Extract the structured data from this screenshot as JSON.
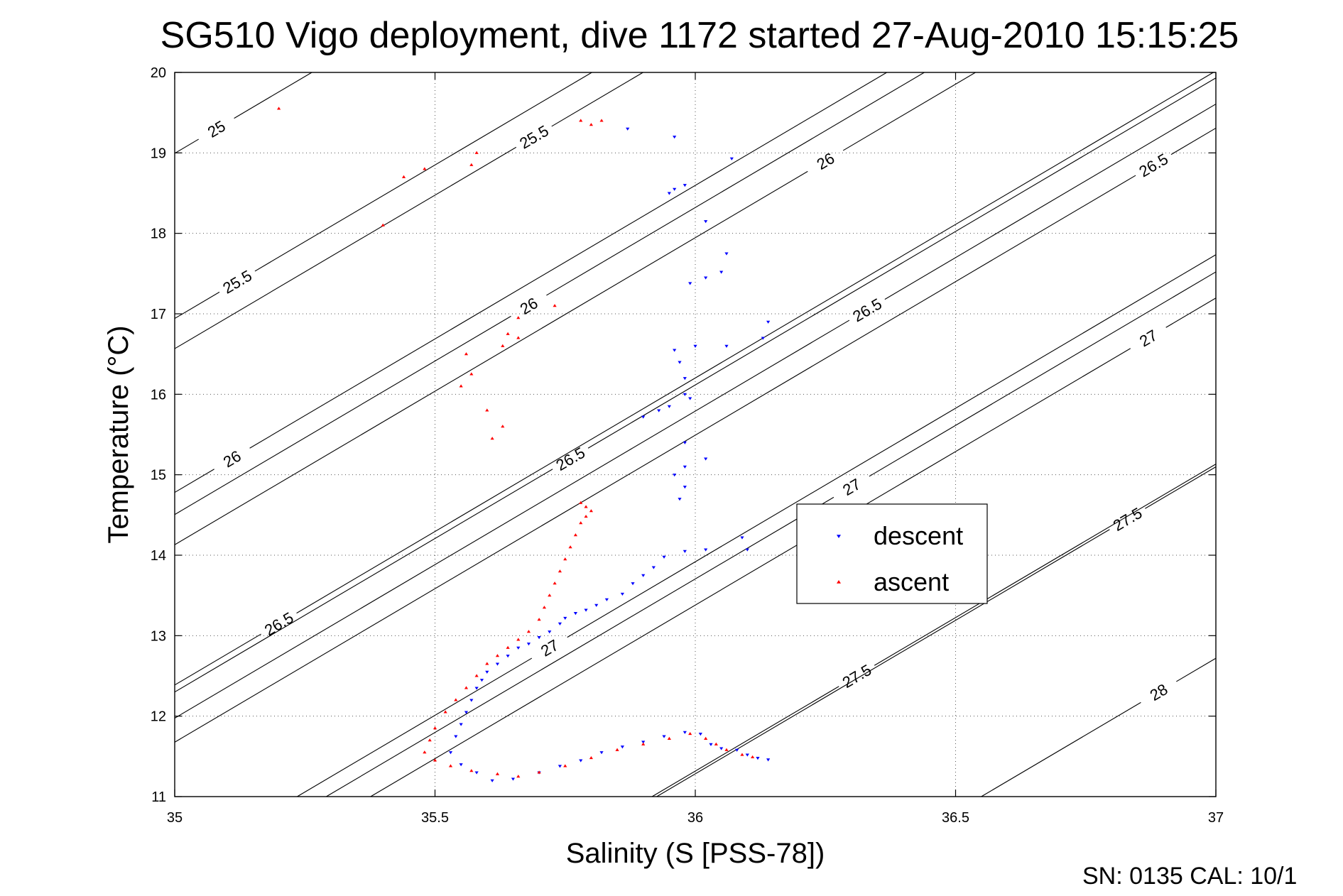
{
  "chart_data": {
    "type": "scatter",
    "title": "SG510 Vigo deployment, dive 1172 started 27-Aug-2010 15:15:25",
    "xlabel": "Salinity (S [PSS-78])",
    "ylabel": "Temperature (°C)",
    "xlim": [
      35,
      37
    ],
    "ylim": [
      11,
      20
    ],
    "xticks": [
      35,
      35.5,
      36,
      36.5,
      37
    ],
    "yticks": [
      11,
      12,
      13,
      14,
      15,
      16,
      17,
      18,
      19,
      20
    ],
    "grid": true,
    "legend_position": "center-right",
    "footer": "SN: 0135  CAL: 10/1",
    "isopycnals": [
      {
        "label": "25",
        "sal": 35.08,
        "temp": 19.3
      },
      {
        "label": "25.5",
        "sal": 35.69,
        "temp": 19.2
      },
      {
        "label": "25.5",
        "sal": 35.12,
        "temp": 17.4
      },
      {
        "label": "26",
        "sal": 36.25,
        "temp": 18.9
      },
      {
        "label": "26",
        "sal": 35.68,
        "temp": 17.1
      },
      {
        "label": "26",
        "sal": 35.11,
        "temp": 15.2
      },
      {
        "label": "26.5",
        "sal": 36.88,
        "temp": 18.85
      },
      {
        "label": "26.5",
        "sal": 36.33,
        "temp": 17.05
      },
      {
        "label": "26.5",
        "sal": 35.76,
        "temp": 15.2
      },
      {
        "label": "26.5",
        "sal": 35.2,
        "temp": 13.15
      },
      {
        "label": "27",
        "sal": 36.87,
        "temp": 16.7
      },
      {
        "label": "27",
        "sal": 36.3,
        "temp": 14.85
      },
      {
        "label": "27",
        "sal": 35.72,
        "temp": 12.85
      },
      {
        "label": "27.5",
        "sal": 36.83,
        "temp": 14.45
      },
      {
        "label": "27.5",
        "sal": 36.31,
        "temp": 12.5
      },
      {
        "label": "28",
        "sal": 36.89,
        "temp": 12.3
      }
    ],
    "series": [
      {
        "name": "descent",
        "color": "#0000ff",
        "marker": "triangle-down",
        "points": [
          [
            35.87,
            19.3
          ],
          [
            35.96,
            19.2
          ],
          [
            36.07,
            18.93
          ],
          [
            35.98,
            18.6
          ],
          [
            35.96,
            18.55
          ],
          [
            35.95,
            18.5
          ],
          [
            36.02,
            18.15
          ],
          [
            36.06,
            17.75
          ],
          [
            36.02,
            17.45
          ],
          [
            36.05,
            17.52
          ],
          [
            35.99,
            17.38
          ],
          [
            36.14,
            16.9
          ],
          [
            36.13,
            16.7
          ],
          [
            36.06,
            16.6
          ],
          [
            35.96,
            16.55
          ],
          [
            35.97,
            16.4
          ],
          [
            36.0,
            16.6
          ],
          [
            35.98,
            16.2
          ],
          [
            35.98,
            16.0
          ],
          [
            35.99,
            15.95
          ],
          [
            35.95,
            15.85
          ],
          [
            35.93,
            15.8
          ],
          [
            35.9,
            15.72
          ],
          [
            35.98,
            15.4
          ],
          [
            35.98,
            15.1
          ],
          [
            36.02,
            15.2
          ],
          [
            35.96,
            15.0
          ],
          [
            35.98,
            14.85
          ],
          [
            35.97,
            14.7
          ],
          [
            36.09,
            14.22
          ],
          [
            36.1,
            14.07
          ],
          [
            36.02,
            14.07
          ],
          [
            35.98,
            14.05
          ],
          [
            35.94,
            13.98
          ],
          [
            35.92,
            13.85
          ],
          [
            35.9,
            13.75
          ],
          [
            35.88,
            13.65
          ],
          [
            35.86,
            13.52
          ],
          [
            35.83,
            13.45
          ],
          [
            35.81,
            13.38
          ],
          [
            35.79,
            13.32
          ],
          [
            35.77,
            13.28
          ],
          [
            35.75,
            13.22
          ],
          [
            35.74,
            13.15
          ],
          [
            35.72,
            13.05
          ],
          [
            35.7,
            12.98
          ],
          [
            35.68,
            12.9
          ],
          [
            35.66,
            12.85
          ],
          [
            35.64,
            12.75
          ],
          [
            35.62,
            12.65
          ],
          [
            35.6,
            12.55
          ],
          [
            35.59,
            12.45
          ],
          [
            35.58,
            12.35
          ],
          [
            35.57,
            12.2
          ],
          [
            35.56,
            12.05
          ],
          [
            35.55,
            11.9
          ],
          [
            35.54,
            11.75
          ],
          [
            35.53,
            11.55
          ],
          [
            35.55,
            11.4
          ],
          [
            35.58,
            11.3
          ],
          [
            35.61,
            11.2
          ],
          [
            35.65,
            11.22
          ],
          [
            35.7,
            11.3
          ],
          [
            35.74,
            11.38
          ],
          [
            35.78,
            11.45
          ],
          [
            35.82,
            11.55
          ],
          [
            35.86,
            11.62
          ],
          [
            35.9,
            11.68
          ],
          [
            35.94,
            11.75
          ],
          [
            35.98,
            11.8
          ],
          [
            36.01,
            11.78
          ],
          [
            36.03,
            11.65
          ],
          [
            36.05,
            11.6
          ],
          [
            36.08,
            11.58
          ],
          [
            36.1,
            11.52
          ],
          [
            36.12,
            11.48
          ],
          [
            36.14,
            11.46
          ]
        ]
      },
      {
        "name": "ascent",
        "color": "#ff0000",
        "marker": "triangle-up",
        "points": [
          [
            35.2,
            19.55
          ],
          [
            35.44,
            18.7
          ],
          [
            35.48,
            18.8
          ],
          [
            35.58,
            19.0
          ],
          [
            35.57,
            18.85
          ],
          [
            35.4,
            18.1
          ],
          [
            35.78,
            19.4
          ],
          [
            35.8,
            19.35
          ],
          [
            35.82,
            19.4
          ],
          [
            35.73,
            17.1
          ],
          [
            35.66,
            16.95
          ],
          [
            35.64,
            16.75
          ],
          [
            35.66,
            16.7
          ],
          [
            35.63,
            16.6
          ],
          [
            35.56,
            16.5
          ],
          [
            35.57,
            16.25
          ],
          [
            35.55,
            16.1
          ],
          [
            35.6,
            15.8
          ],
          [
            35.63,
            15.6
          ],
          [
            35.61,
            15.45
          ],
          [
            35.78,
            14.65
          ],
          [
            35.79,
            14.6
          ],
          [
            35.8,
            14.55
          ],
          [
            35.79,
            14.48
          ],
          [
            35.78,
            14.4
          ],
          [
            35.77,
            14.25
          ],
          [
            35.76,
            14.1
          ],
          [
            35.75,
            13.95
          ],
          [
            35.74,
            13.8
          ],
          [
            35.73,
            13.65
          ],
          [
            35.72,
            13.5
          ],
          [
            35.71,
            13.35
          ],
          [
            35.7,
            13.2
          ],
          [
            35.68,
            13.05
          ],
          [
            35.66,
            12.95
          ],
          [
            35.64,
            12.85
          ],
          [
            35.62,
            12.75
          ],
          [
            35.6,
            12.65
          ],
          [
            35.58,
            12.5
          ],
          [
            35.56,
            12.35
          ],
          [
            35.54,
            12.2
          ],
          [
            35.52,
            12.05
          ],
          [
            35.5,
            11.85
          ],
          [
            35.49,
            11.7
          ],
          [
            35.48,
            11.55
          ],
          [
            35.5,
            11.45
          ],
          [
            35.53,
            11.38
          ],
          [
            35.57,
            11.32
          ],
          [
            35.62,
            11.28
          ],
          [
            35.66,
            11.25
          ],
          [
            35.7,
            11.3
          ],
          [
            35.75,
            11.38
          ],
          [
            35.8,
            11.48
          ],
          [
            35.85,
            11.58
          ],
          [
            35.9,
            11.65
          ],
          [
            35.95,
            11.72
          ],
          [
            35.99,
            11.78
          ],
          [
            36.02,
            11.72
          ],
          [
            36.04,
            11.65
          ],
          [
            36.06,
            11.58
          ],
          [
            36.09,
            11.52
          ],
          [
            36.11,
            11.49
          ]
        ]
      }
    ]
  }
}
